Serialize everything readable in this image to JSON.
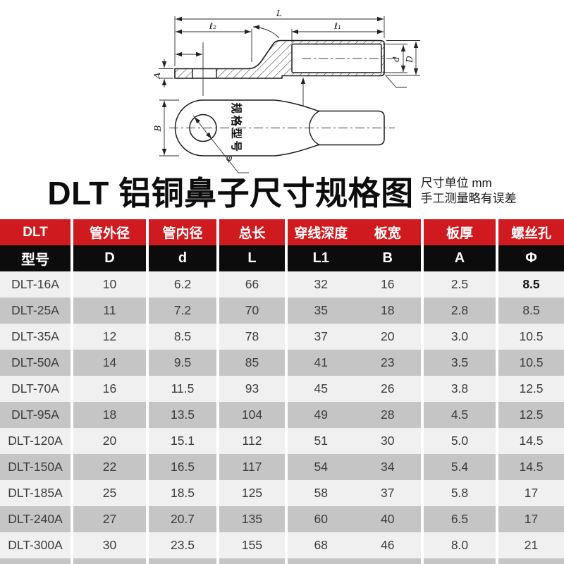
{
  "diagram": {
    "dim_labels": {
      "L": "L",
      "L2": "ℓ₂",
      "L1": "ℓ₁",
      "A": "A",
      "d": "d",
      "D": "D",
      "B": "B",
      "phi": "φ"
    },
    "body_text": "规格型号"
  },
  "title": {
    "text": "DLT 铝铜鼻子尺寸规格图",
    "note_line1": "尺寸单位 mm",
    "note_line2": "手工测量略有误差"
  },
  "table": {
    "header_row1": {
      "c1": "DLT",
      "c2": "管外径",
      "c3": "管内径",
      "c4": "总长",
      "c5a": "穿线深度",
      "c5b": "板宽",
      "c6": "板厚",
      "c7": "螺丝孔"
    },
    "header_row2": {
      "c1": "型号",
      "c2": "D",
      "c3": "d",
      "c4": "L",
      "c5a": "L1",
      "c5b": "B",
      "c6": "A",
      "c7": "Φ"
    },
    "rows": [
      {
        "model": "DLT-16A",
        "D": "10",
        "d": "6.2",
        "L": "66",
        "L1": "32",
        "B": "16",
        "A": "2.5",
        "phi": "8.5"
      },
      {
        "model": "DLT-25A",
        "D": "11",
        "d": "7.2",
        "L": "70",
        "L1": "35",
        "B": "18",
        "A": "2.8",
        "phi": "8.5"
      },
      {
        "model": "DLT-35A",
        "D": "12",
        "d": "8.5",
        "L": "78",
        "L1": "37",
        "B": "20",
        "A": "3.0",
        "phi": "10.5"
      },
      {
        "model": "DLT-50A",
        "D": "14",
        "d": "9.5",
        "L": "85",
        "L1": "41",
        "B": "23",
        "A": "3.5",
        "phi": "10.5"
      },
      {
        "model": "DLT-70A",
        "D": "16",
        "d": "11.5",
        "L": "93",
        "L1": "45",
        "B": "26",
        "A": "3.8",
        "phi": "12.5"
      },
      {
        "model": "DLT-95A",
        "D": "18",
        "d": "13.5",
        "L": "104",
        "L1": "49",
        "B": "28",
        "A": "4.5",
        "phi": "12.5"
      },
      {
        "model": "DLT-120A",
        "D": "20",
        "d": "15.1",
        "L": "112",
        "L1": "51",
        "B": "30",
        "A": "5.0",
        "phi": "14.5"
      },
      {
        "model": "DLT-150A",
        "D": "22",
        "d": "16.5",
        "L": "117",
        "L1": "54",
        "B": "34",
        "A": "5.4",
        "phi": "14.5"
      },
      {
        "model": "DLT-185A",
        "D": "25",
        "d": "18.5",
        "L": "125",
        "L1": "58",
        "B": "37",
        "A": "5.8",
        "phi": "17"
      },
      {
        "model": "DLT-240A",
        "D": "27",
        "d": "20.7",
        "L": "135",
        "L1": "60",
        "B": "40",
        "A": "6.5",
        "phi": "17"
      },
      {
        "model": "DLT-300A",
        "D": "30",
        "d": "23.5",
        "L": "155",
        "L1": "68",
        "B": "46",
        "A": "8.0",
        "phi": "21"
      }
    ]
  },
  "colors": {
    "header_red": "#cf1a1f",
    "header_black": "#0c0c0c",
    "row_light": "#f1f0f0",
    "row_gray": "#c6c5c5"
  }
}
